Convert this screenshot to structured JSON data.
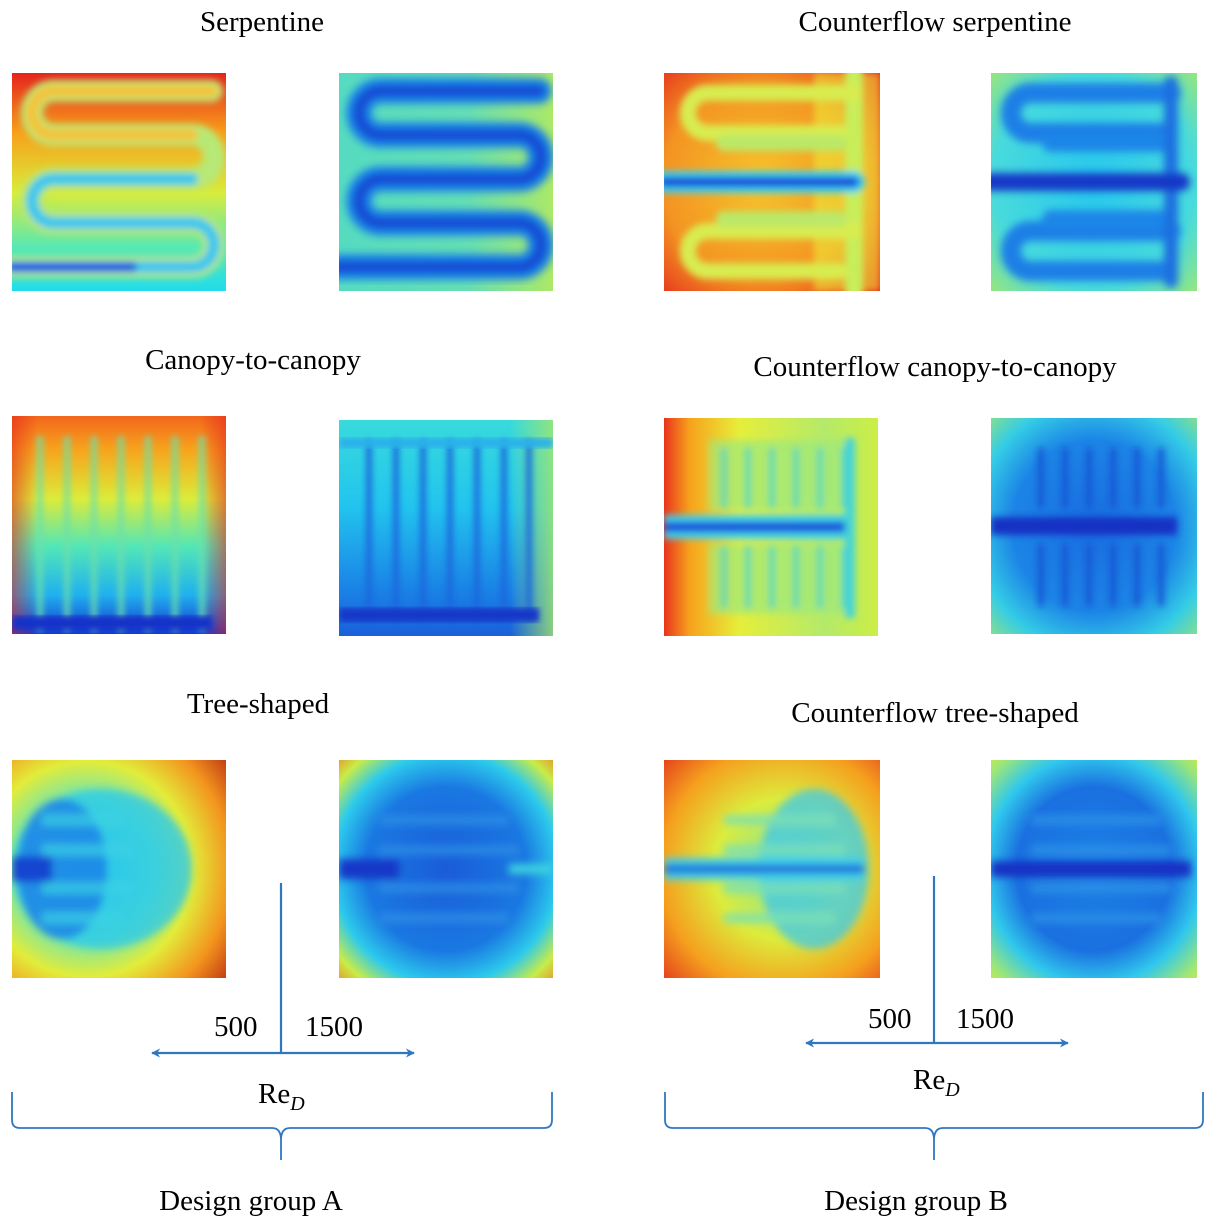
{
  "colors": {
    "accent": "#2e78c2"
  },
  "groups": [
    {
      "label": "Design group A",
      "axis_left": "500",
      "axis_right": "1500",
      "axis_var": "Re",
      "axis_sub": "D",
      "designs": [
        {
          "title": "Serpentine"
        },
        {
          "title": "Canopy-to-canopy"
        },
        {
          "title": "Tree-shaped"
        }
      ]
    },
    {
      "label": "Design group B",
      "axis_left": "500",
      "axis_right": "1500",
      "axis_var": "Re",
      "axis_sub": "D",
      "designs": [
        {
          "title": "Counterflow serpentine"
        },
        {
          "title": "Counterflow canopy-to-canopy"
        },
        {
          "title": "Counterflow tree-shaped"
        }
      ]
    }
  ]
}
